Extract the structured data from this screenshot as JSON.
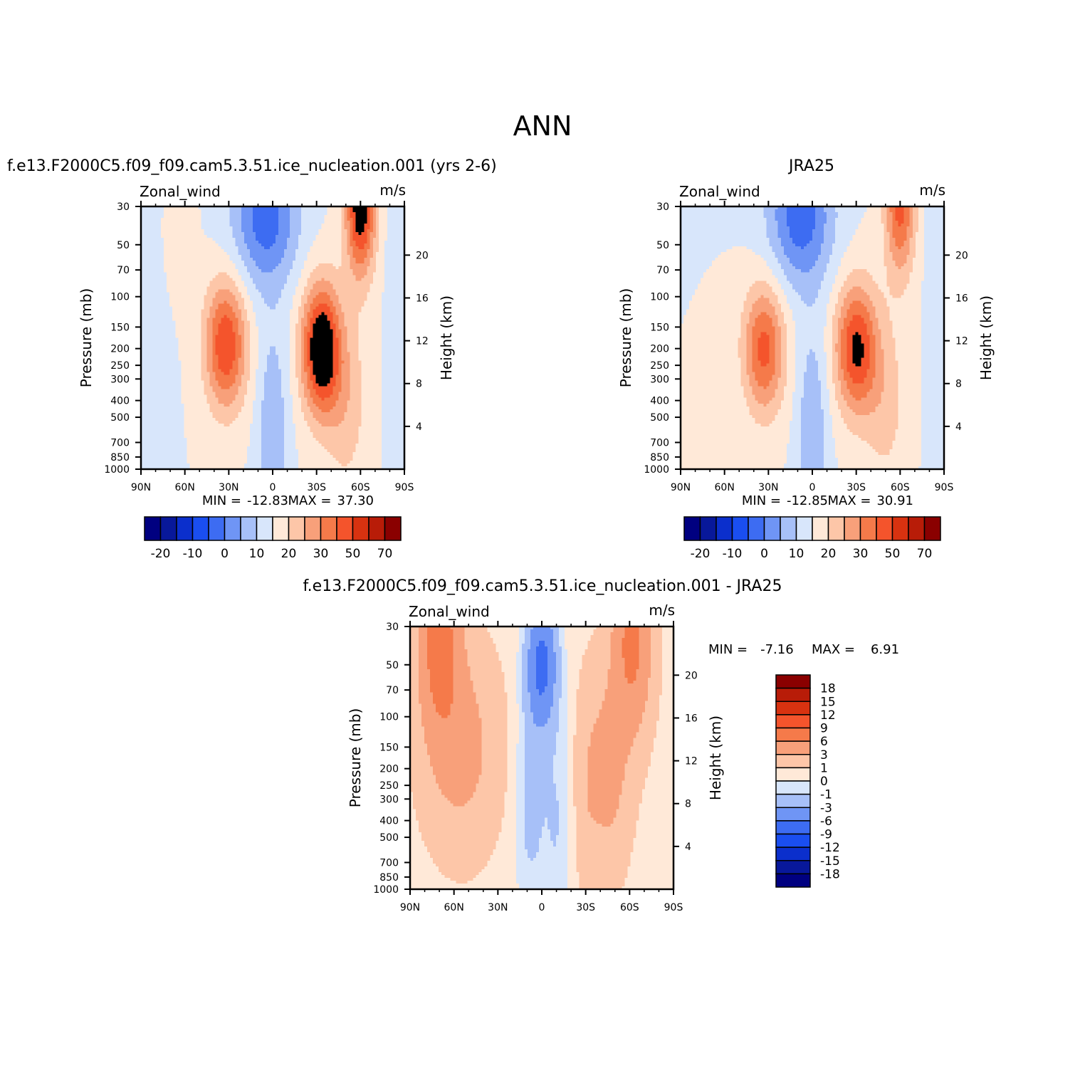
{
  "page": {
    "title": "ANN"
  },
  "palettes": {
    "full": [
      "#000080",
      "#08189a",
      "#0b2fcc",
      "#1a4ef0",
      "#3d6cf2",
      "#6f95f5",
      "#a7c0f8",
      "#d8e6fb",
      "#ffe9d8",
      "#fdc6a8",
      "#f8a07a",
      "#f57a4a",
      "#f4542c",
      "#d83210",
      "#b81c08",
      "#8a0000"
    ],
    "model_levels": [
      -10,
      -5,
      0,
      5,
      10,
      15,
      20,
      25,
      30,
      35
    ],
    "model_colors": [
      "#3d6cf2",
      "#6f95f5",
      "#a7c0f8",
      "#d8e6fb",
      "#ffe9d8",
      "#fdc6a8",
      "#f8a07a",
      "#f57a4a",
      "#f4542c"
    ],
    "diff_levels": [
      -6,
      -3,
      -1,
      0,
      1,
      3,
      6
    ],
    "diff_colors": [
      "#3d6cf2",
      "#6f95f5",
      "#a7c0f8",
      "#d8e6fb",
      "#ffe9d8",
      "#fdc6a8",
      "#f8a07a",
      "#f57a4a"
    ]
  },
  "panels": [
    {
      "subtitle": "f.e13.F2000C5.f09_f09.cam5.3.51.ice_nucleation.001 (yrs 2-6)",
      "left_string": "Zonal_wind",
      "right_string": "m/s",
      "y_label": "Pressure (mb)",
      "y2_label": "Height (km)",
      "min_label": "MIN =",
      "min_value": "-12.83",
      "max_label": "MAX =",
      "max_value": "37.30",
      "colorbar_ticks": [
        "-20",
        "-10",
        "0",
        "10",
        "20",
        "30",
        "50",
        "70"
      ]
    },
    {
      "subtitle": "JRA25",
      "left_string": "Zonal_wind",
      "right_string": "m/s",
      "y_label": "Pressure (mb)",
      "y2_label": "Height (km)",
      "min_label": "MIN =",
      "min_value": "-12.85",
      "max_label": "MAX =",
      "max_value": "30.91",
      "colorbar_ticks": [
        "-20",
        "-10",
        "0",
        "10",
        "20",
        "30",
        "50",
        "70"
      ]
    },
    {
      "subtitle": "f.e13.F2000C5.f09_f09.cam5.3.51.ice_nucleation.001 - JRA25",
      "left_string": "Zonal_wind",
      "right_string": "m/s",
      "y_label": "Pressure (mb)",
      "y2_label": "Height (km)",
      "min_label": "MIN =",
      "min_value": "-7.16",
      "max_label": "MAX =",
      "max_value": "6.91",
      "colorbar_labels": [
        "18",
        "15",
        "12",
        "9",
        "6",
        "3",
        "1",
        "0",
        "-1",
        "-3",
        "-6",
        "-9",
        "-12",
        "-15",
        "-18"
      ],
      "colorbar_colors": [
        "#8a0000",
        "#b81c08",
        "#d83210",
        "#f4542c",
        "#f57a4a",
        "#f8a07a",
        "#fdc6a8",
        "#ffe9d8",
        "#d8e6fb",
        "#a7c0f8",
        "#6f95f5",
        "#3d6cf2",
        "#1a4ef0",
        "#0b2fcc",
        "#08189a",
        "#000080"
      ]
    }
  ],
  "chart_data": [
    {
      "type": "heatmap",
      "title": "f.e13.F2000C5.f09_f09.cam5.3.51.ice_nucleation.001 (yrs 2-6)",
      "subtitle": "Zonal_wind (m/s)",
      "xlabel": "",
      "ylabel": "Pressure (mb)",
      "y2label": "Height (km)",
      "x_ticks": [
        "90N",
        "60N",
        "30N",
        "0",
        "30S",
        "60S",
        "90S"
      ],
      "x_tick_values": [
        90,
        60,
        30,
        0,
        -30,
        -60,
        -90
      ],
      "y_ticks": [
        "30",
        "50",
        "70",
        "100",
        "150",
        "200",
        "250",
        "300",
        "400",
        "500",
        "700",
        "850",
        "1000"
      ],
      "y_tick_values": [
        30,
        50,
        70,
        100,
        150,
        200,
        250,
        300,
        400,
        500,
        700,
        850,
        1000
      ],
      "y2_ticks": [
        "4",
        "8",
        "12",
        "16",
        "20"
      ],
      "y2_tick_values": [
        4,
        8,
        12,
        16,
        20
      ],
      "min": -12.83,
      "max": 37.3,
      "features": [
        {
          "name": "NH subtropical jet",
          "lat": 32,
          "p": 200,
          "peak": 28
        },
        {
          "name": "SH subtropical jet",
          "lat": -33,
          "p": 200,
          "peak": 37.3
        },
        {
          "name": "SH polar jet",
          "lat": -60,
          "p": 30,
          "peak": 30
        },
        {
          "name": "Tropical easterlies",
          "lat": 0,
          "p": 30,
          "peak": -12.8
        }
      ]
    },
    {
      "type": "heatmap",
      "title": "JRA25",
      "subtitle": "Zonal_wind (m/s)",
      "xlabel": "",
      "ylabel": "Pressure (mb)",
      "y2label": "Height (km)",
      "x_ticks": [
        "90N",
        "60N",
        "30N",
        "0",
        "30S",
        "60S",
        "90S"
      ],
      "x_tick_values": [
        90,
        60,
        30,
        0,
        -30,
        -60,
        -90
      ],
      "y_ticks": [
        "30",
        "50",
        "70",
        "100",
        "150",
        "200",
        "250",
        "300",
        "400",
        "500",
        "700",
        "850",
        "1000"
      ],
      "y_tick_values": [
        30,
        50,
        70,
        100,
        150,
        200,
        250,
        300,
        400,
        500,
        700,
        850,
        1000
      ],
      "y2_ticks": [
        "4",
        "8",
        "12",
        "16",
        "20"
      ],
      "y2_tick_values": [
        4,
        8,
        12,
        16,
        20
      ],
      "min": -12.85,
      "max": 30.91,
      "features": [
        {
          "name": "NH subtropical jet",
          "lat": 33,
          "p": 200,
          "peak": 26
        },
        {
          "name": "SH subtropical jet",
          "lat": -30,
          "p": 200,
          "peak": 30.9
        },
        {
          "name": "SH polar jet",
          "lat": -60,
          "p": 30,
          "peak": 25
        },
        {
          "name": "Tropical easterlies",
          "lat": 5,
          "p": 30,
          "peak": -12.9
        }
      ]
    },
    {
      "type": "heatmap",
      "title": "f.e13.F2000C5.f09_f09.cam5.3.51.ice_nucleation.001 - JRA25",
      "subtitle": "Zonal_wind (m/s)",
      "xlabel": "",
      "ylabel": "Pressure (mb)",
      "y2label": "Height (km)",
      "x_ticks": [
        "90N",
        "60N",
        "30N",
        "0",
        "30S",
        "60S",
        "90S"
      ],
      "x_tick_values": [
        90,
        60,
        30,
        0,
        -30,
        -60,
        -90
      ],
      "y_ticks": [
        "30",
        "50",
        "70",
        "100",
        "150",
        "200",
        "250",
        "300",
        "400",
        "500",
        "700",
        "850",
        "1000"
      ],
      "y_tick_values": [
        30,
        50,
        70,
        100,
        150,
        200,
        250,
        300,
        400,
        500,
        700,
        850,
        1000
      ],
      "y2_ticks": [
        "4",
        "8",
        "12",
        "16",
        "20"
      ],
      "y2_tick_values": [
        4,
        8,
        12,
        16,
        20
      ],
      "min": -7.16,
      "max": 6.91,
      "features": [
        {
          "name": "NH high-latitude positive",
          "lat": 70,
          "p": 35,
          "peak": 6.9
        },
        {
          "name": "SH high-latitude positive",
          "lat": -62,
          "p": 35,
          "peak": 6.5
        },
        {
          "name": "Tropical negative",
          "lat": 0,
          "p": 50,
          "peak": -7.2
        }
      ]
    }
  ]
}
